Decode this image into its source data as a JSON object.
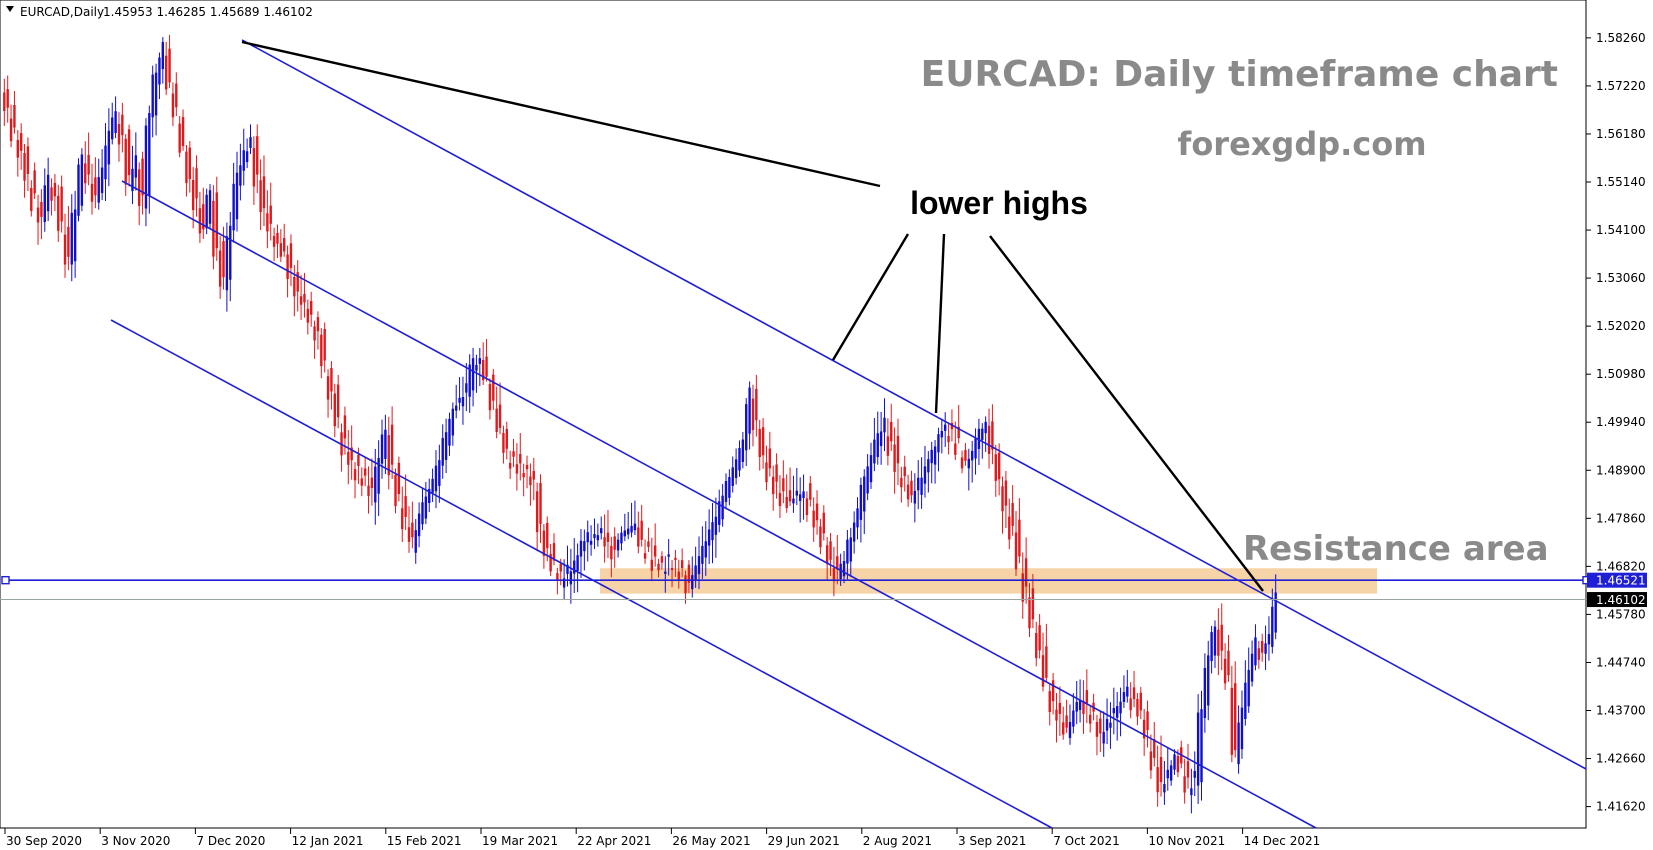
{
  "header": {
    "symbol": "EURCAD,Daily",
    "ohlc": "1.45953 1.46285 1.45689 1.46102"
  },
  "annotations": {
    "title": "EURCAD: Daily timeframe chart",
    "site": "forexgdp.com",
    "lower_highs": "lower highs",
    "resistance": "Resistance area"
  },
  "price_tags": {
    "level": "1.46521",
    "current": "1.46102"
  },
  "colors": {
    "bull": "#1010c8",
    "bear": "#e0191c",
    "channel": "#1f1fd6",
    "resistance_zone": "#f7d4a8",
    "level_line": "#1f1fd6",
    "current_tag": "#000000"
  },
  "chart_data": {
    "type": "candlestick",
    "symbol": "EURCAD",
    "timeframe": "Daily",
    "title": "EURCAD: Daily timeframe chart",
    "y_ticks": [
      "1.58260",
      "1.57220",
      "1.56180",
      "1.55140",
      "1.54100",
      "1.53060",
      "1.52020",
      "1.50980",
      "1.49940",
      "1.48900",
      "1.47860",
      "1.46820",
      "1.45780",
      "1.44740",
      "1.43700",
      "1.42660",
      "1.41620"
    ],
    "x_ticks": [
      "30 Sep 2020",
      "3 Nov 2020",
      "7 Dec 2020",
      "12 Jan 2021",
      "15 Feb 2021",
      "19 Mar 2021",
      "22 Apr 2021",
      "26 May 2021",
      "29 Jun 2021",
      "2 Aug 2021",
      "3 Sep 2021",
      "7 Oct 2021",
      "10 Nov 2021",
      "14 Dec 2021"
    ],
    "ylim": [
      1.4133,
      1.5856
    ],
    "last_ohlc": [
      1.45953,
      1.46285,
      1.45689,
      1.46102
    ],
    "horizontal_level": 1.46521,
    "current_price": 1.46102,
    "resistance_zone": [
      1.4623,
      1.4678
    ],
    "closes": [
      1.567,
      1.562,
      1.558,
      1.552,
      1.547,
      1.543,
      1.551,
      1.548,
      1.541,
      1.534,
      1.545,
      1.556,
      1.552,
      1.548,
      1.553,
      1.561,
      1.566,
      1.561,
      1.552,
      1.556,
      1.548,
      1.565,
      1.575,
      1.58,
      1.572,
      1.566,
      1.559,
      1.552,
      1.546,
      1.541,
      1.549,
      1.536,
      1.529,
      1.541,
      1.552,
      1.557,
      1.56,
      1.552,
      1.545,
      1.541,
      1.538,
      1.536,
      1.531,
      1.527,
      1.525,
      1.522,
      1.518,
      1.512,
      1.506,
      1.499,
      1.494,
      1.491,
      1.488,
      1.486,
      1.484,
      1.491,
      1.497,
      1.489,
      1.482,
      1.478,
      1.474,
      1.478,
      1.483,
      1.486,
      1.491,
      1.496,
      1.501,
      1.503,
      1.506,
      1.512,
      1.513,
      1.509,
      1.503,
      1.498,
      1.493,
      1.491,
      1.489,
      1.488,
      1.486,
      1.477,
      1.472,
      1.468,
      1.466,
      1.467,
      1.469,
      1.472,
      1.474,
      1.475,
      1.476,
      1.473,
      1.471,
      1.474,
      1.476,
      1.477,
      1.473,
      1.471,
      1.469,
      1.468,
      1.469,
      1.468,
      1.466,
      1.463,
      1.467,
      1.471,
      1.475,
      1.478,
      1.483,
      1.487,
      1.491,
      1.495,
      1.505,
      1.498,
      1.492,
      1.488,
      1.485,
      1.483,
      1.481,
      1.483,
      1.484,
      1.481,
      1.478,
      1.474,
      1.469,
      1.466,
      1.469,
      1.474,
      1.479,
      1.486,
      1.491,
      1.496,
      1.499,
      1.494,
      1.489,
      1.486,
      1.483,
      1.486,
      1.489,
      1.492,
      1.496,
      1.498,
      1.496,
      1.494,
      1.491,
      1.493,
      1.497,
      1.499,
      1.493,
      1.487,
      1.481,
      1.476,
      1.469,
      1.462,
      1.455,
      1.449,
      1.443,
      1.438,
      1.435,
      1.433,
      1.436,
      1.439,
      1.437,
      1.435,
      1.432,
      1.434,
      1.436,
      1.438,
      1.441,
      1.439,
      1.436,
      1.431,
      1.426,
      1.421,
      1.423,
      1.427,
      1.424,
      1.421,
      1.422,
      1.437,
      1.448,
      1.454,
      1.449,
      1.443,
      1.428,
      1.436,
      1.444,
      1.451,
      1.449,
      1.452,
      1.461
    ]
  }
}
